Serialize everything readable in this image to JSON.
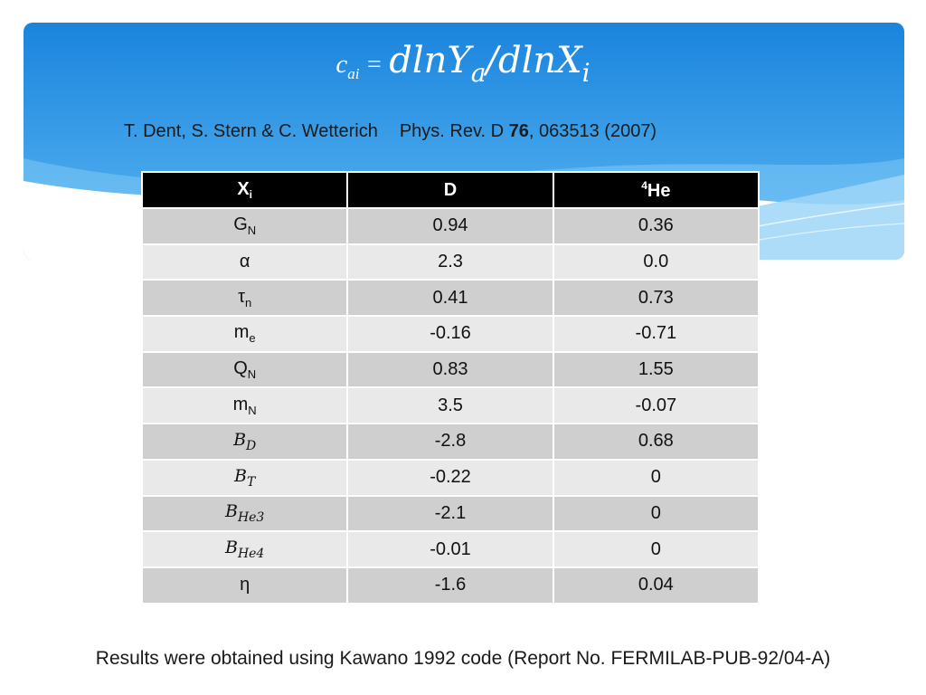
{
  "slide": {
    "formula": {
      "lhs_symbol": "c",
      "lhs_subscript": "ai",
      "equals": "=",
      "numerator_symbol": "dlnY",
      "numerator_subscript": "a",
      "divider": "/",
      "denominator_symbol": "dlnX",
      "denominator_subscript": "i"
    },
    "citation": {
      "authors": "T. Dent, S. Stern & C. Wetterich",
      "journal": "Phys. Rev. D",
      "volume": "76",
      "pages_year": ", 063513 (2007)"
    },
    "table": {
      "header": {
        "col1_base": "X",
        "col1_subscript": "i",
        "col2": "D",
        "col3_superscript": "4",
        "col3_base": "He"
      },
      "rows": [
        {
          "base": "G",
          "sub": "N",
          "d": "0.94",
          "he": "0.36"
        },
        {
          "base": "α",
          "sub": "",
          "d": "2.3",
          "he": "0.0"
        },
        {
          "base": "τ",
          "sub": "n",
          "d": "0.41",
          "he": "0.73"
        },
        {
          "base": "m",
          "sub": "e",
          "d": "-0.16",
          "he": "-0.71"
        },
        {
          "base": "Q",
          "sub": "N",
          "d": "0.83",
          "he": "1.55"
        },
        {
          "base": "m",
          "sub": "N",
          "d": "3.5",
          "he": "-0.07"
        },
        {
          "base": "B",
          "sub": "D",
          "d": "-2.8",
          "he": "0.68"
        },
        {
          "base": "B",
          "sub": "T",
          "d": "-0.22",
          "he": "0"
        },
        {
          "base": "B",
          "sub": "He3",
          "d": "-2.1",
          "he": "0"
        },
        {
          "base": "B",
          "sub": "He4",
          "d": "-0.01",
          "he": "0"
        },
        {
          "base": "η",
          "sub": "",
          "d": "-1.6",
          "he": "0.04"
        }
      ]
    },
    "footnote": "Results were obtained using Kawano 1992 code (Report No. FERMILAB-PUB-92/04-A)",
    "colors": {
      "band_top": "#1a84dd",
      "band_bottom": "#5cb8f2",
      "header_row": "#000000",
      "row_dark": "#cfcfcf",
      "row_light": "#e9e9e9"
    }
  }
}
